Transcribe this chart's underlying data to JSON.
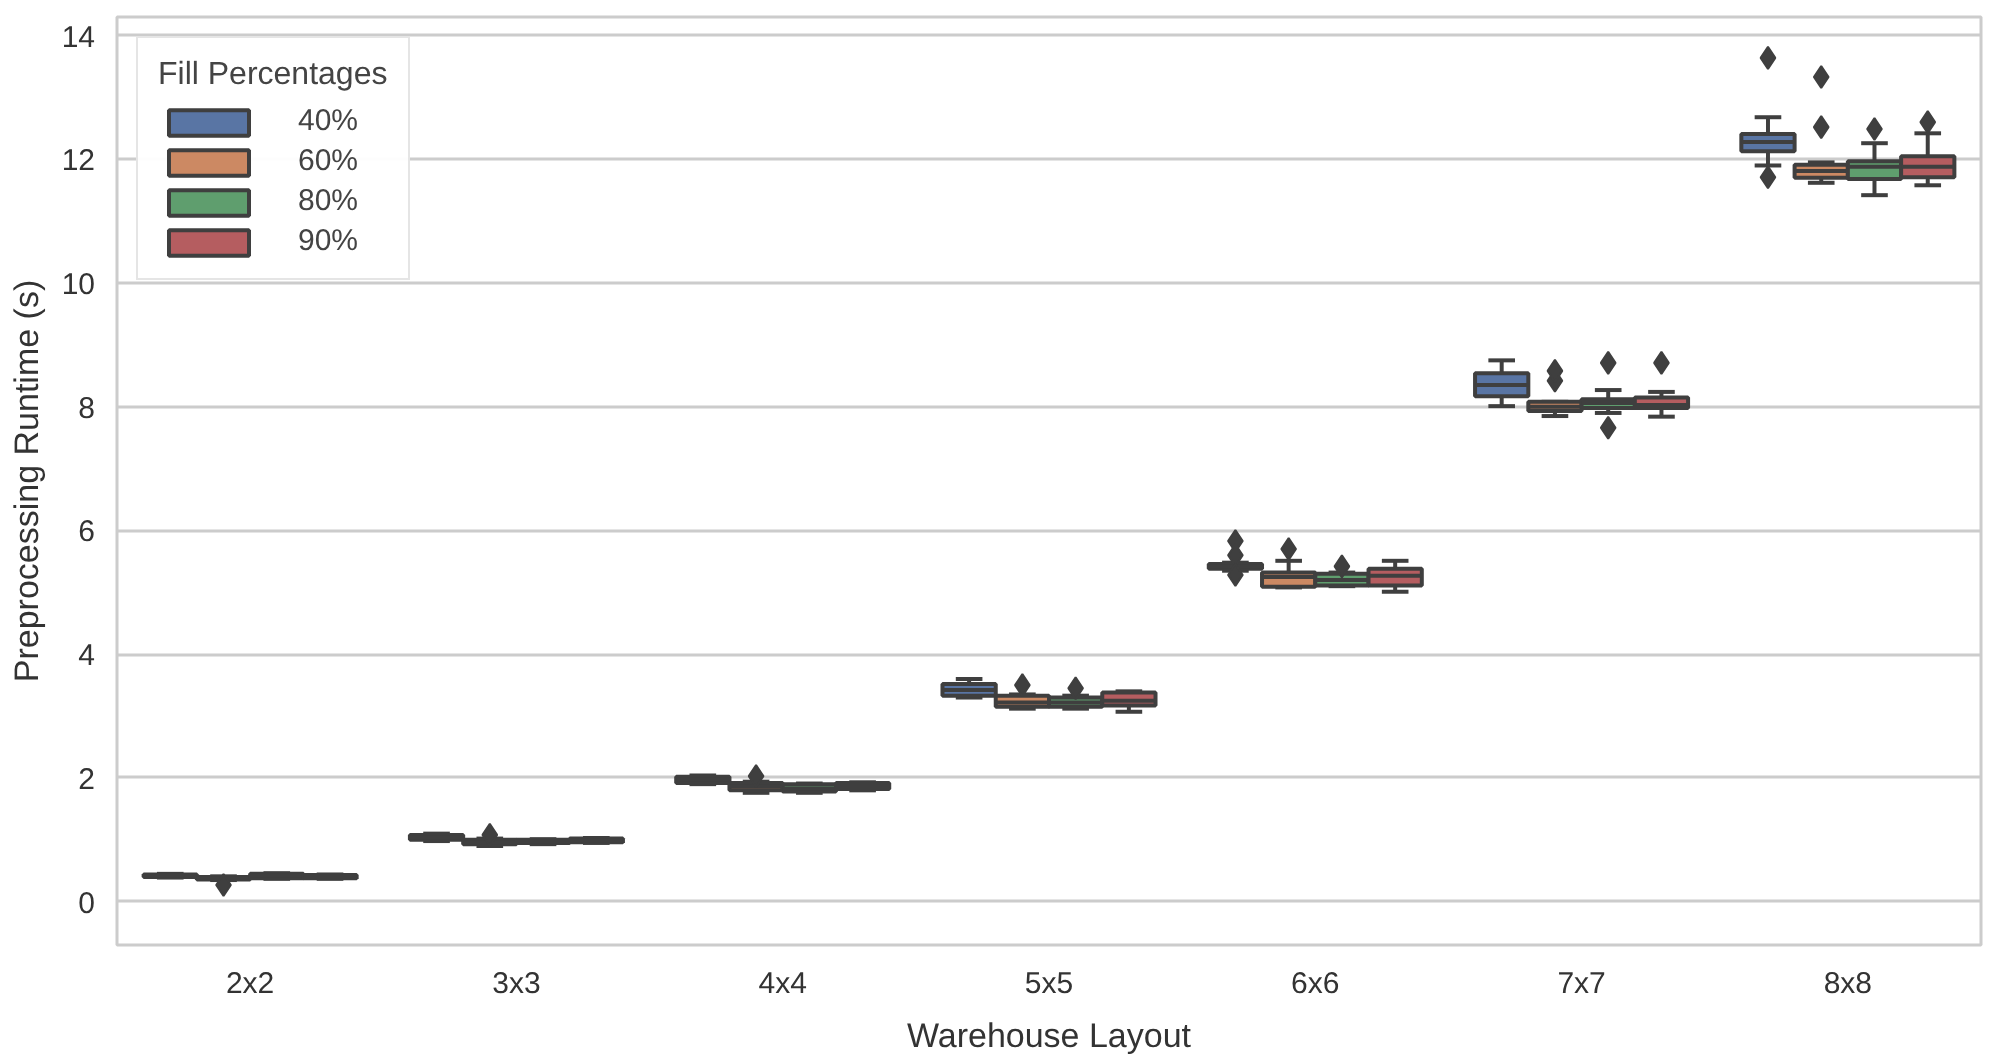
{
  "chart_data": {
    "type": "box",
    "xlabel": "Warehouse Layout",
    "ylabel": "Preprocessing Runtime (s)",
    "legend_title": "Fill Percentages",
    "categories": [
      "2x2",
      "3x3",
      "4x4",
      "5x5",
      "6x6",
      "7x7",
      "8x8"
    ],
    "ylim": [
      -0.7,
      14.3
    ],
    "yticks": [
      0,
      2,
      4,
      6,
      8,
      10,
      12,
      14
    ],
    "grid": "y",
    "legend": "top left",
    "marker": "diamond",
    "series": [
      {
        "name": "40%",
        "color": "#5975a4",
        "boxes": [
          {
            "low": 0.39,
            "q1": 0.4,
            "median": 0.42,
            "q3": 0.44,
            "high": 0.45
          },
          {
            "low": 0.98,
            "q1": 1.0,
            "median": 1.04,
            "q3": 1.08,
            "high": 1.1
          },
          {
            "low": 1.9,
            "q1": 1.92,
            "median": 1.97,
            "q3": 2.02,
            "high": 2.04
          },
          {
            "low": 3.3,
            "q1": 3.33,
            "median": 3.42,
            "q3": 3.52,
            "high": 3.6
          },
          {
            "low": 5.35,
            "q1": 5.38,
            "median": 5.42,
            "q3": 5.46,
            "high": 5.48,
            "outliers": [
              5.83,
              5.6,
              5.28
            ]
          },
          {
            "low": 8.01,
            "q1": 8.17,
            "median": 8.35,
            "q3": 8.54,
            "high": 8.75
          },
          {
            "low": 11.9,
            "q1": 12.13,
            "median": 12.28,
            "q3": 12.41,
            "high": 12.68,
            "outliers": [
              13.64,
              11.71
            ]
          }
        ]
      },
      {
        "name": "60%",
        "color": "#cc8963",
        "boxes": [
          {
            "low": 0.35,
            "q1": 0.36,
            "median": 0.38,
            "q3": 0.4,
            "high": 0.41,
            "outliers": [
              0.27
            ]
          },
          {
            "low": 0.9,
            "q1": 0.93,
            "median": 0.96,
            "q3": 1.0,
            "high": 1.02,
            "outliers": [
              1.08
            ]
          },
          {
            "low": 1.76,
            "q1": 1.8,
            "median": 1.86,
            "q3": 1.92,
            "high": 1.94,
            "outliers": [
              2.03
            ]
          },
          {
            "low": 3.12,
            "q1": 3.15,
            "median": 3.22,
            "q3": 3.33,
            "high": 3.35,
            "outliers": [
              3.5
            ]
          },
          {
            "low": 5.08,
            "q1": 5.09,
            "median": 5.25,
            "q3": 5.32,
            "high": 5.51,
            "outliers": [
              5.7
            ]
          },
          {
            "low": 7.85,
            "q1": 7.93,
            "median": 8.0,
            "q3": 8.08,
            "high": 8.08,
            "outliers": [
              8.42,
              8.58
            ]
          },
          {
            "low": 11.62,
            "q1": 11.7,
            "median": 11.81,
            "q3": 11.91,
            "high": 11.95,
            "outliers": [
              12.52,
              13.33
            ]
          }
        ]
      },
      {
        "name": "80%",
        "color": "#5f9e6e",
        "boxes": [
          {
            "low": 0.37,
            "q1": 0.38,
            "median": 0.42,
            "q3": 0.45,
            "high": 0.46
          },
          {
            "low": 0.93,
            "q1": 0.95,
            "median": 0.97,
            "q3": 1.0,
            "high": 1.01
          },
          {
            "low": 1.76,
            "q1": 1.78,
            "median": 1.83,
            "q3": 1.9,
            "high": 1.91
          },
          {
            "low": 3.12,
            "q1": 3.15,
            "median": 3.22,
            "q3": 3.3,
            "high": 3.33,
            "outliers": [
              3.45
            ]
          },
          {
            "low": 5.1,
            "q1": 5.11,
            "median": 5.2,
            "q3": 5.3,
            "high": 5.32,
            "outliers": [
              5.42
            ]
          },
          {
            "low": 7.9,
            "q1": 7.98,
            "median": 8.06,
            "q3": 8.12,
            "high": 8.27,
            "outliers": [
              8.71,
              7.66
            ]
          },
          {
            "low": 11.42,
            "q1": 11.68,
            "median": 11.88,
            "q3": 11.97,
            "high": 12.26,
            "outliers": [
              12.49
            ]
          }
        ]
      },
      {
        "name": "90%",
        "color": "#b55d60",
        "boxes": [
          {
            "low": 0.37,
            "q1": 0.38,
            "median": 0.4,
            "q3": 0.43,
            "high": 0.44
          },
          {
            "low": 0.95,
            "q1": 0.96,
            "median": 0.99,
            "q3": 1.02,
            "high": 1.03
          },
          {
            "low": 1.8,
            "q1": 1.82,
            "median": 1.87,
            "q3": 1.92,
            "high": 1.93
          },
          {
            "low": 3.07,
            "q1": 3.17,
            "median": 3.25,
            "q3": 3.38,
            "high": 3.4
          },
          {
            "low": 5.01,
            "q1": 5.11,
            "median": 5.27,
            "q3": 5.38,
            "high": 5.51
          },
          {
            "low": 7.84,
            "q1": 7.98,
            "median": 8.03,
            "q3": 8.15,
            "high": 8.24,
            "outliers": [
              8.71
            ]
          },
          {
            "low": 11.58,
            "q1": 11.71,
            "median": 11.88,
            "q3": 12.05,
            "high": 12.42,
            "outliers": [
              12.6
            ]
          }
        ]
      }
    ]
  }
}
